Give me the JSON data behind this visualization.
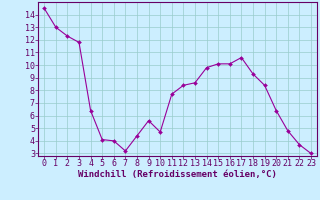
{
  "x": [
    0,
    1,
    2,
    3,
    4,
    5,
    6,
    7,
    8,
    9,
    10,
    11,
    12,
    13,
    14,
    15,
    16,
    17,
    18,
    19,
    20,
    21,
    22,
    23
  ],
  "y": [
    14.5,
    13.0,
    12.3,
    11.8,
    6.4,
    4.1,
    4.0,
    3.2,
    4.4,
    5.6,
    4.7,
    7.7,
    8.4,
    8.6,
    9.8,
    10.1,
    10.1,
    10.6,
    9.3,
    8.4,
    6.4,
    4.8,
    3.7,
    3.0
  ],
  "xlabel": "Windchill (Refroidissement éolien,°C)",
  "ylim_min": 2.8,
  "ylim_max": 15.0,
  "xlim_min": -0.5,
  "xlim_max": 23.5,
  "yticks": [
    3,
    4,
    5,
    6,
    7,
    8,
    9,
    10,
    11,
    12,
    13,
    14
  ],
  "xticks": [
    0,
    1,
    2,
    3,
    4,
    5,
    6,
    7,
    8,
    9,
    10,
    11,
    12,
    13,
    14,
    15,
    16,
    17,
    18,
    19,
    20,
    21,
    22,
    23
  ],
  "line_color": "#990099",
  "marker_color": "#990099",
  "bg_color": "#cceeff",
  "grid_color": "#99cccc",
  "axis_color": "#660066",
  "label_color": "#660066",
  "xlabel_fontsize": 6.5,
  "tick_fontsize": 6.0,
  "marker_size": 2.0,
  "line_width": 0.8
}
